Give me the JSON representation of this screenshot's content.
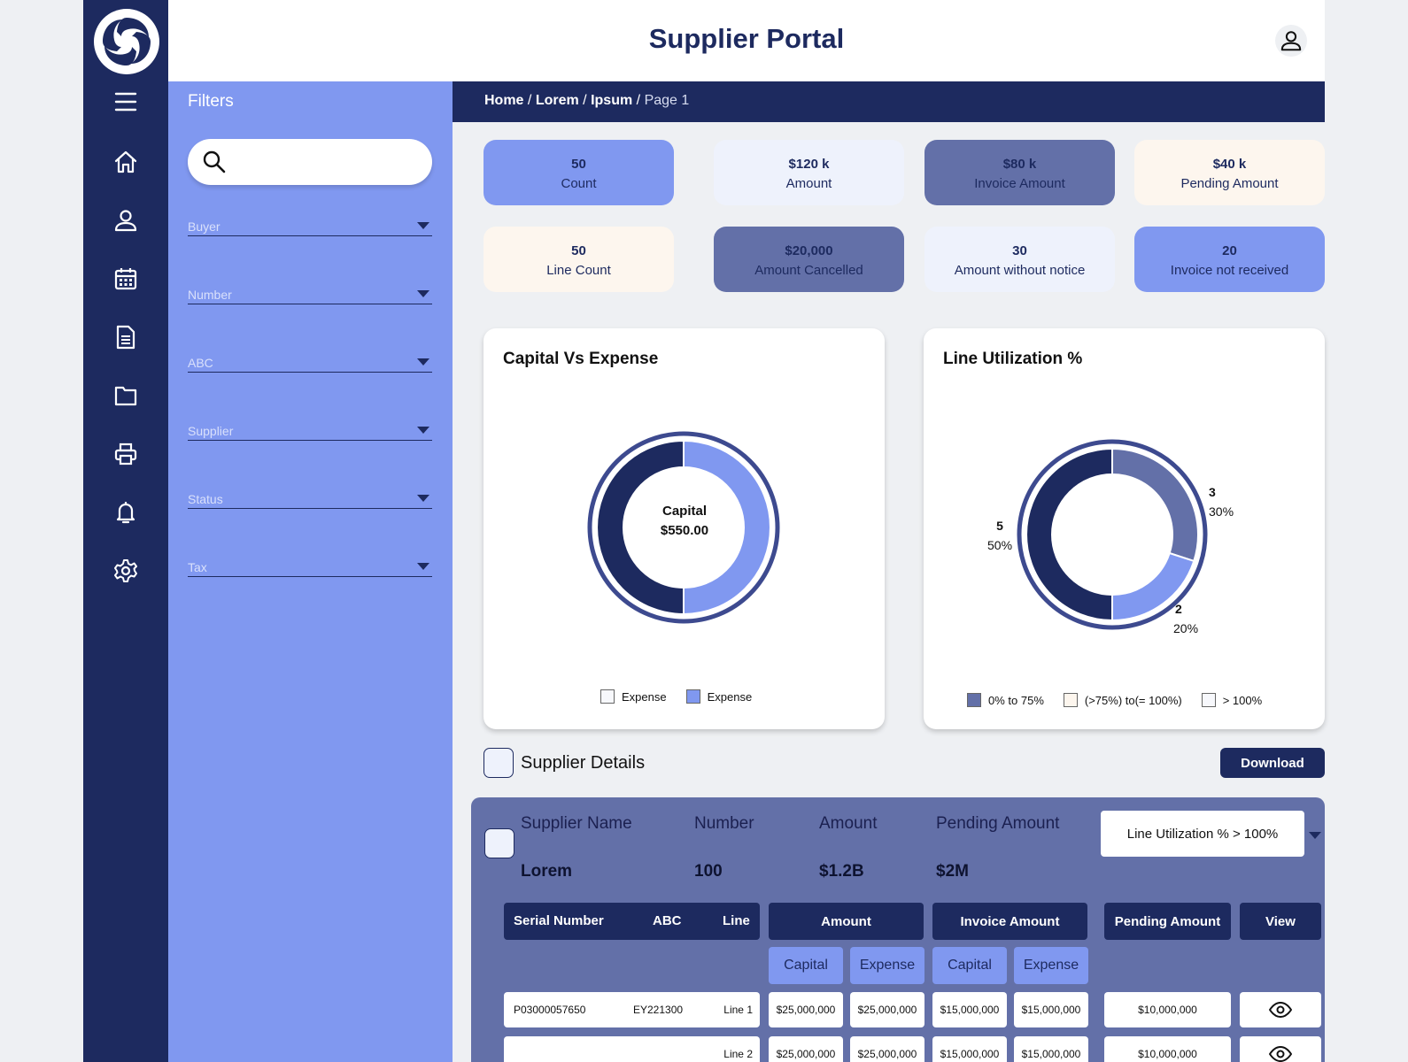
{
  "app": {
    "title": "Supplier Portal"
  },
  "nav": {
    "icons": [
      "menu-icon",
      "home-icon",
      "user-icon",
      "calendar-icon",
      "document-icon",
      "folder-icon",
      "printer-icon",
      "bell-icon",
      "gear-icon"
    ]
  },
  "filters": {
    "title": "Filters",
    "search_value": "",
    "fields": [
      {
        "label": "Buyer"
      },
      {
        "label": "Number"
      },
      {
        "label": "ABC"
      },
      {
        "label": "Supplier"
      },
      {
        "label": "Status"
      },
      {
        "label": "Tax"
      }
    ]
  },
  "breadcrumb": {
    "items": [
      "Home",
      "Lorem",
      "Ipsum",
      "Page 1"
    ],
    "separator": "/"
  },
  "stats": [
    {
      "value": "50",
      "label": "Count"
    },
    {
      "value": "$120 k",
      "label": "Amount"
    },
    {
      "value": "$80 k",
      "label": "Invoice Amount"
    },
    {
      "value": "$40 k",
      "label": "Pending Amount"
    },
    {
      "value": "50",
      "label": "Line Count"
    },
    {
      "value": "$20,000",
      "label": "Amount Cancelled"
    },
    {
      "value": "30",
      "label": "Amount without notice"
    },
    {
      "value": "20",
      "label": "Invoice not received"
    }
  ],
  "capital_chart": {
    "title": "Capital Vs Expense",
    "center_label": "Capital",
    "center_value": "$550.00",
    "legend": [
      "Expense",
      "Expense"
    ]
  },
  "utilization_chart": {
    "title": "Line Utilization %",
    "legend": [
      "0% to 75%",
      "(>75%) to(= 100%)",
      "> 100%"
    ],
    "labels": [
      {
        "count": "3",
        "pct": "30%"
      },
      {
        "count": "2",
        "pct": "20%"
      },
      {
        "count": "5",
        "pct": "50%"
      }
    ]
  },
  "chart_data": [
    {
      "type": "pie",
      "title": "Capital Vs Expense",
      "categories": [
        "Expense",
        "Expense"
      ],
      "values": [
        50,
        50
      ]
    },
    {
      "type": "pie",
      "title": "Line Utilization %",
      "categories": [
        "0% to 75%",
        "(>75%) to(= 100%)",
        "> 100%"
      ],
      "values": [
        5,
        2,
        3
      ]
    }
  ],
  "details": {
    "title": "Supplier Details",
    "download_label": "Download",
    "headers": [
      "Supplier Name",
      "Number",
      "Amount",
      "Pending Amount"
    ],
    "values": [
      "Lorem",
      "100",
      "$1.2B",
      "$2M"
    ],
    "filter_select": "Line Utilization % > 100%",
    "table": {
      "head": {
        "serial": "Serial Number",
        "abc": "ABC",
        "line": "Line",
        "amount": "Amount",
        "invoice_amount": "Invoice Amount",
        "pending_amount": "Pending Amount",
        "view": "View"
      },
      "sub": [
        "Capital",
        "Expense",
        "Capital",
        "Expense"
      ],
      "rows": [
        {
          "serial": "P03000057650",
          "abc": "EY221300",
          "line": "Line 1",
          "amount_capital": "$25,000,000",
          "amount_expense": "$25,000,000",
          "invoice_capital": "$15,000,000",
          "invoice_expense": "$15,000,000",
          "pending": "$10,000,000"
        },
        {
          "serial": "",
          "abc": "",
          "line": "Line 2",
          "amount_capital": "$25,000,000",
          "amount_expense": "$25,000,000",
          "invoice_capital": "$15,000,000",
          "invoice_expense": "$15,000,000",
          "pending": "$10,000,000"
        }
      ]
    }
  },
  "colors": {
    "navy": "#1d2a5f",
    "periwinkle": "#8098f0",
    "slate": "#6370a8",
    "pale": "#eef2fc",
    "cream": "#fdf6ee"
  }
}
